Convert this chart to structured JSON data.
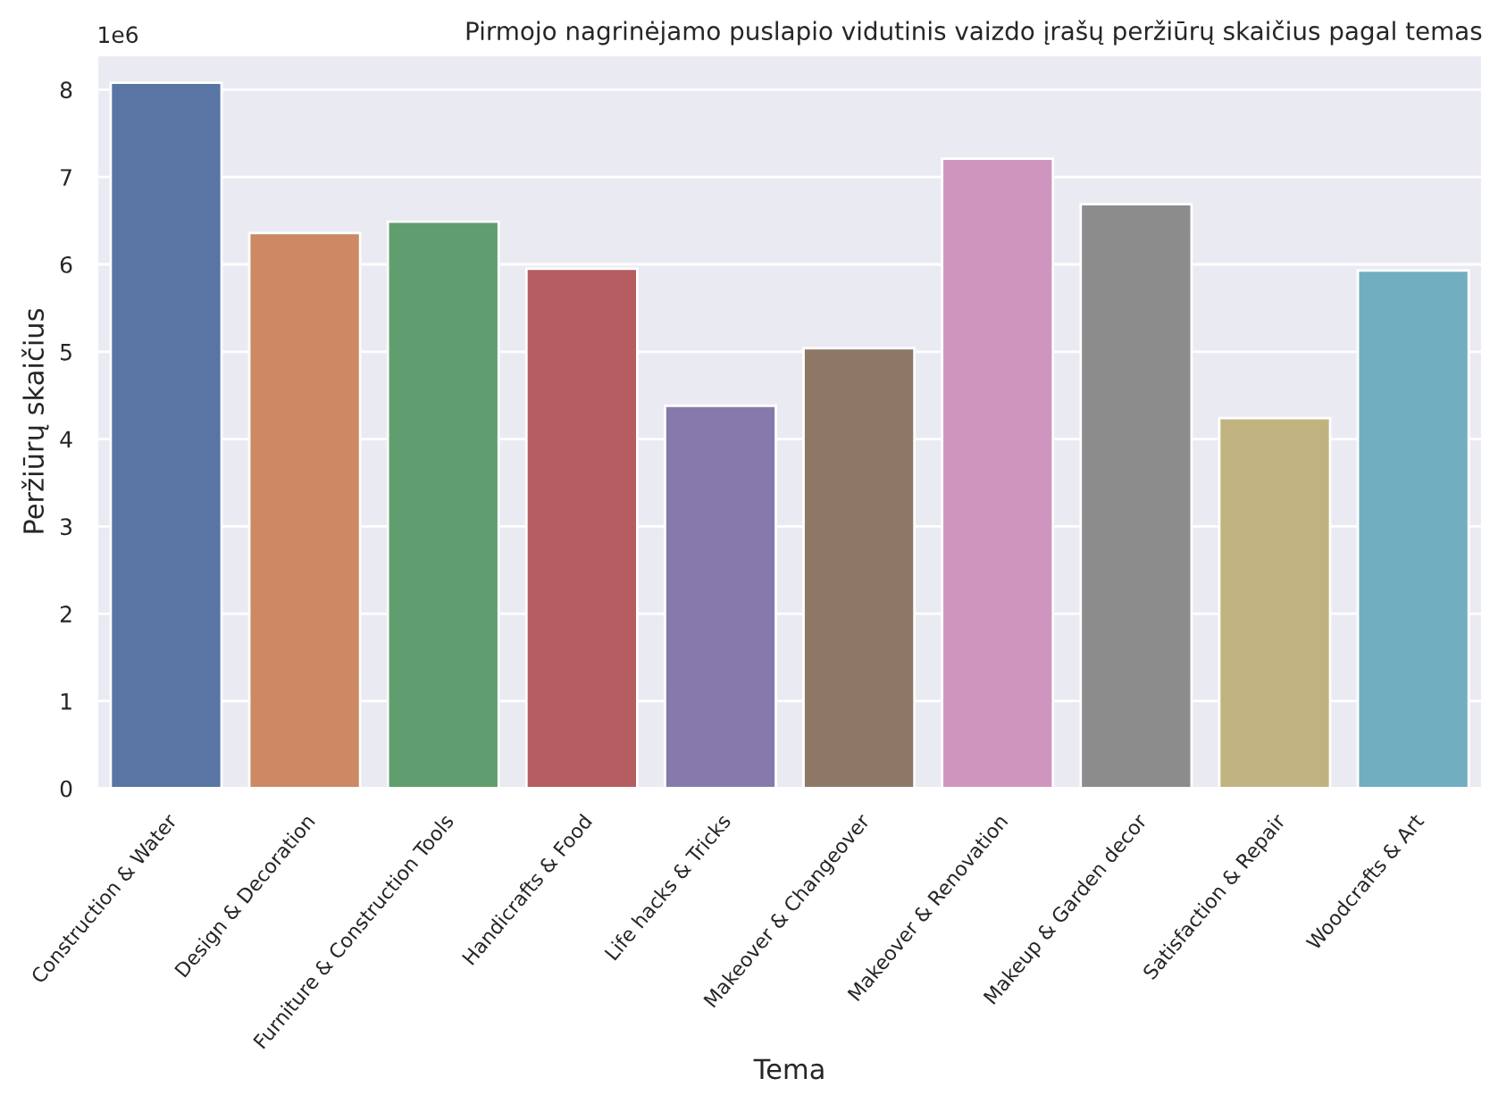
{
  "chart_data": {
    "type": "bar",
    "title": "Pirmojo nagrinėjamo puslapio vidutinis vaizdo įrašų peržiūrų skaičius pagal temas",
    "xlabel": "Tema",
    "ylabel": "Peržiūrų skaičius",
    "categories": [
      "Construction & Water",
      "Design & Decoration",
      "Furniture & Construction Tools",
      "Handicrafts & Food",
      "Life hacks & Tricks",
      "Makeover & Changeover",
      "Makeover & Renovation",
      "Makeup & Garden decor",
      "Satisfaction & Repair",
      "Woodcrafts & Art"
    ],
    "values": [
      8.08,
      6.36,
      6.49,
      5.95,
      4.38,
      5.04,
      7.21,
      6.69,
      4.24,
      5.93
    ],
    "colors": [
      "#5875a4",
      "#cc8963",
      "#5f9e6e",
      "#b55d60",
      "#857aab",
      "#8d7866",
      "#d095bf",
      "#8c8c8c",
      "#c1b37f",
      "#71aec0"
    ],
    "ylim": [
      0,
      8.4
    ],
    "yticks": [
      0,
      1,
      2,
      3,
      4,
      5,
      6,
      7,
      8
    ],
    "annotations": [
      "1e6"
    ],
    "grid": "y"
  }
}
